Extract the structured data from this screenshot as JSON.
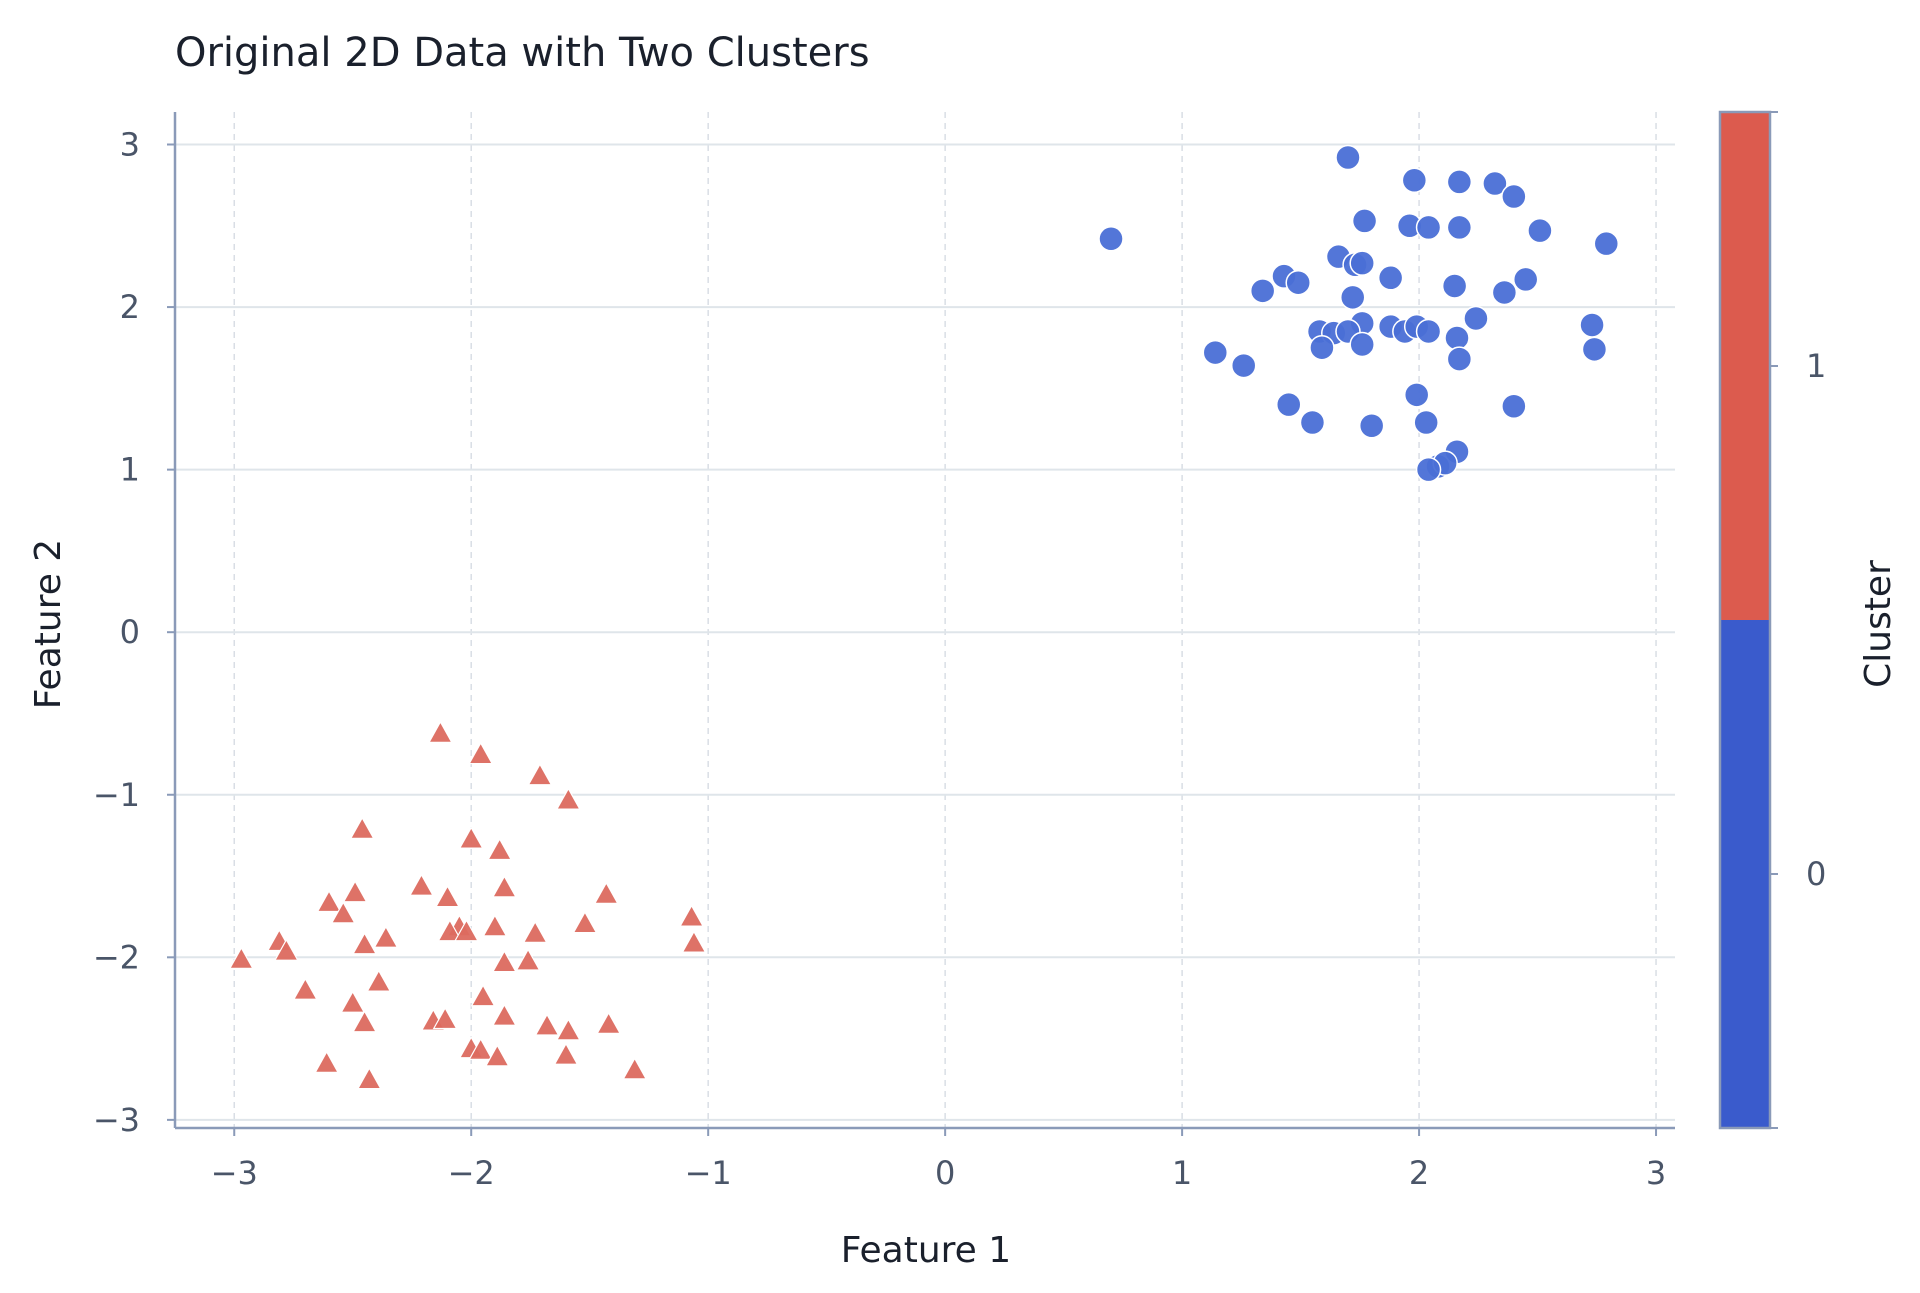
{
  "chart_data": {
    "type": "scatter",
    "title": "Original 2D Data with Two Clusters",
    "xlabel": "Feature 1",
    "ylabel": "Feature 2",
    "xlim": [
      -3.25,
      3.08
    ],
    "ylim": [
      -3.05,
      3.2
    ],
    "xticks": [
      -3,
      -2,
      -1,
      0,
      1,
      2,
      3
    ],
    "yticks": [
      -3,
      -2,
      -1,
      0,
      1,
      2,
      3
    ],
    "xtick_labels": [
      "−3",
      "−2",
      "−1",
      "0",
      "1",
      "2",
      "3"
    ],
    "ytick_labels": [
      "−3",
      "−2",
      "−1",
      "0",
      "1",
      "2",
      "3"
    ],
    "grid": true,
    "grid_style": "dashed vertical, solid horizontal",
    "colorbar": {
      "label": "Cluster",
      "ticks": [
        0,
        1
      ],
      "tick_labels": [
        "0",
        "1"
      ],
      "colors": [
        "#3a5bcc",
        "#dc5b4e"
      ]
    },
    "series": [
      {
        "marker": "circle",
        "color": "#4a6fd6",
        "cluster": 0,
        "points": [
          [
            1.7,
            2.92
          ],
          [
            1.98,
            2.78
          ],
          [
            2.17,
            2.77
          ],
          [
            2.32,
            2.76
          ],
          [
            2.4,
            2.68
          ],
          [
            0.7,
            2.42
          ],
          [
            1.77,
            2.53
          ],
          [
            1.96,
            2.5
          ],
          [
            2.04,
            2.49
          ],
          [
            2.17,
            2.49
          ],
          [
            2.51,
            2.47
          ],
          [
            2.79,
            2.39
          ],
          [
            1.66,
            2.31
          ],
          [
            1.73,
            2.26
          ],
          [
            1.76,
            2.27
          ],
          [
            1.43,
            2.19
          ],
          [
            1.49,
            2.15
          ],
          [
            1.88,
            2.18
          ],
          [
            2.15,
            2.13
          ],
          [
            2.45,
            2.17
          ],
          [
            1.34,
            2.1
          ],
          [
            1.72,
            2.06
          ],
          [
            2.36,
            2.09
          ],
          [
            1.76,
            1.9
          ],
          [
            1.58,
            1.85
          ],
          [
            1.64,
            1.84
          ],
          [
            1.7,
            1.85
          ],
          [
            1.88,
            1.88
          ],
          [
            1.94,
            1.85
          ],
          [
            1.99,
            1.88
          ],
          [
            2.04,
            1.85
          ],
          [
            2.24,
            1.93
          ],
          [
            2.73,
            1.89
          ],
          [
            2.16,
            1.81
          ],
          [
            1.59,
            1.75
          ],
          [
            1.76,
            1.77
          ],
          [
            1.14,
            1.72
          ],
          [
            1.26,
            1.64
          ],
          [
            2.17,
            1.68
          ],
          [
            2.74,
            1.74
          ],
          [
            1.99,
            1.46
          ],
          [
            1.45,
            1.4
          ],
          [
            2.4,
            1.39
          ],
          [
            1.55,
            1.29
          ],
          [
            1.8,
            1.27
          ],
          [
            2.03,
            1.29
          ],
          [
            2.16,
            1.11
          ],
          [
            2.08,
            1.02
          ],
          [
            2.11,
            1.04
          ],
          [
            2.04,
            1.0
          ]
        ]
      },
      {
        "marker": "triangle",
        "color": "#dc6a5f",
        "cluster": 1,
        "points": [
          [
            -2.13,
            -0.63
          ],
          [
            -1.96,
            -0.76
          ],
          [
            -1.71,
            -0.89
          ],
          [
            -1.59,
            -1.04
          ],
          [
            -2.46,
            -1.22
          ],
          [
            -2.0,
            -1.28
          ],
          [
            -1.88,
            -1.35
          ],
          [
            -2.21,
            -1.57
          ],
          [
            -1.86,
            -1.58
          ],
          [
            -1.43,
            -1.62
          ],
          [
            -2.49,
            -1.61
          ],
          [
            -2.1,
            -1.64
          ],
          [
            -2.6,
            -1.67
          ],
          [
            -2.54,
            -1.74
          ],
          [
            -1.9,
            -1.82
          ],
          [
            -2.05,
            -1.82
          ],
          [
            -2.09,
            -1.85
          ],
          [
            -2.02,
            -1.85
          ],
          [
            -1.52,
            -1.8
          ],
          [
            -1.73,
            -1.86
          ],
          [
            -1.07,
            -1.76
          ],
          [
            -1.06,
            -1.92
          ],
          [
            -2.36,
            -1.89
          ],
          [
            -2.45,
            -1.93
          ],
          [
            -2.81,
            -1.91
          ],
          [
            -2.78,
            -1.97
          ],
          [
            -2.97,
            -2.02
          ],
          [
            -1.86,
            -2.04
          ],
          [
            -1.76,
            -2.03
          ],
          [
            -2.39,
            -2.16
          ],
          [
            -2.7,
            -2.21
          ],
          [
            -1.95,
            -2.25
          ],
          [
            -2.5,
            -2.29
          ],
          [
            -1.86,
            -2.37
          ],
          [
            -2.45,
            -2.41
          ],
          [
            -2.16,
            -2.4
          ],
          [
            -2.11,
            -2.39
          ],
          [
            -1.68,
            -2.43
          ],
          [
            -1.59,
            -2.46
          ],
          [
            -1.42,
            -2.42
          ],
          [
            -2.0,
            -2.57
          ],
          [
            -1.96,
            -2.58
          ],
          [
            -1.89,
            -2.62
          ],
          [
            -1.6,
            -2.61
          ],
          [
            -2.61,
            -2.66
          ],
          [
            -1.31,
            -2.7
          ],
          [
            -2.43,
            -2.76
          ]
        ]
      }
    ]
  }
}
